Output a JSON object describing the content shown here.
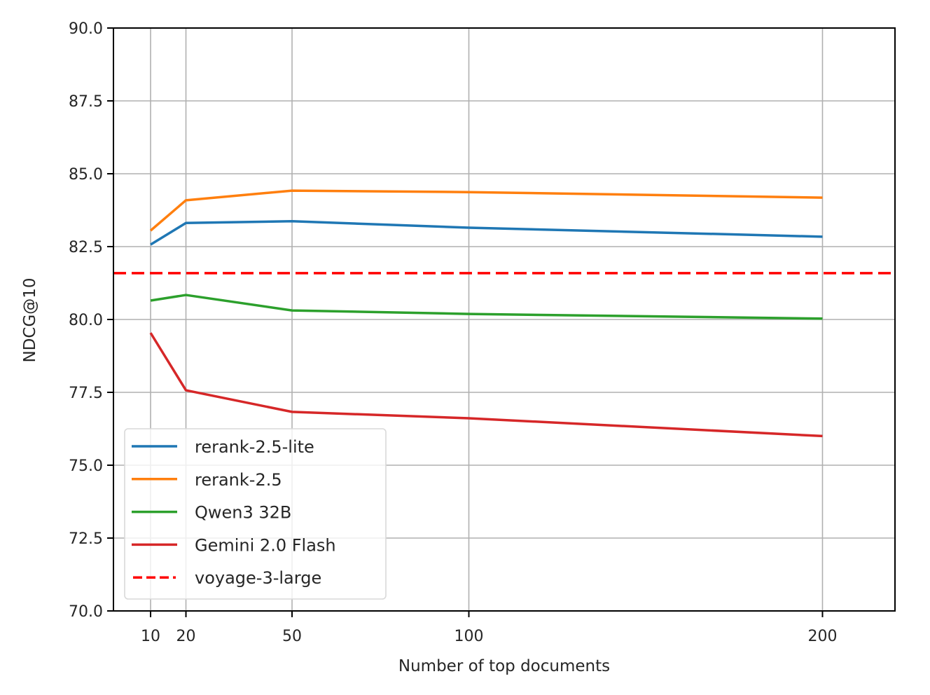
{
  "chart_data": {
    "type": "line",
    "title": "",
    "xlabel": "Number of top documents",
    "ylabel": "NDCG@10",
    "x": [
      10,
      20,
      50,
      100,
      200
    ],
    "xticks": [
      10,
      20,
      50,
      100,
      200
    ],
    "xtick_labels": [
      "10",
      "20",
      "50",
      "100",
      "200"
    ],
    "xlim": [
      -0.5,
      220.5
    ],
    "ylim": [
      70.0,
      90.0
    ],
    "yticks": [
      70.0,
      72.5,
      75.0,
      77.5,
      80.0,
      82.5,
      85.0,
      87.5,
      90.0
    ],
    "ytick_labels": [
      "70.0",
      "72.5",
      "75.0",
      "77.5",
      "80.0",
      "82.5",
      "85.0",
      "87.5",
      "90.0"
    ],
    "grid": true,
    "legend_position": "lower left",
    "series": [
      {
        "name": "rerank-2.5-lite",
        "color": "#1f77b4",
        "style": "solid",
        "values": [
          82.57,
          83.31,
          83.37,
          83.15,
          82.84
        ]
      },
      {
        "name": "rerank-2.5",
        "color": "#ff7f0e",
        "style": "solid",
        "values": [
          83.05,
          84.09,
          84.42,
          84.37,
          84.18
        ]
      },
      {
        "name": "Qwen3 32B",
        "color": "#2ca02c",
        "style": "solid",
        "values": [
          80.65,
          80.84,
          80.31,
          80.19,
          80.03
        ]
      },
      {
        "name": "Gemini 2.0 Flash",
        "color": "#d62728",
        "style": "solid",
        "values": [
          79.54,
          77.57,
          76.83,
          76.61,
          76.0
        ]
      },
      {
        "name": "voyage-3-large",
        "color": "#ff0000",
        "style": "dashed",
        "horizontal": true,
        "values": [
          81.59
        ]
      }
    ]
  }
}
